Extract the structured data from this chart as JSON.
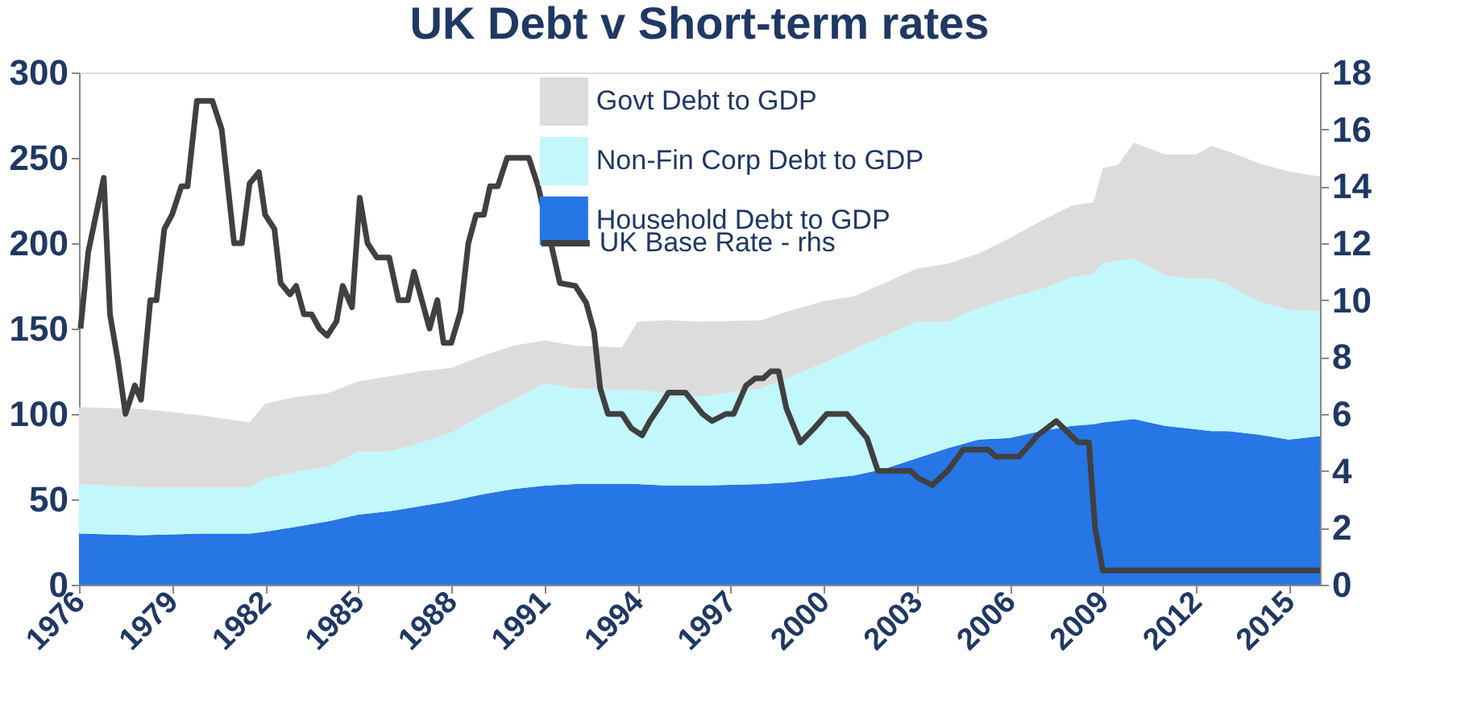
{
  "chart_data": {
    "type": "area",
    "title": "UK Debt v Short-term rates",
    "stacked": true,
    "legend": "top",
    "grid": false,
    "x": [
      1976,
      1978,
      1980,
      1981.5,
      1982,
      1983,
      1984,
      1985,
      1986,
      1987,
      1988,
      1989,
      1990,
      1991,
      1992,
      1993.5,
      1994,
      1995,
      1996,
      1998,
      1999,
      2000,
      2001,
      2002,
      2003,
      2004,
      2005,
      2006,
      2007,
      2008,
      2008.7,
      2009,
      2009.5,
      2010,
      2011,
      2012,
      2012.5,
      2013,
      2014,
      2015,
      2016
    ],
    "series": [
      {
        "name": "Household Debt to GDP",
        "color": "#2776e6",
        "values": [
          30,
          29,
          30,
          30,
          31,
          34,
          37,
          41,
          43,
          46,
          49,
          53,
          56,
          58,
          59,
          59,
          59,
          58,
          58,
          59,
          60,
          62,
          64,
          68,
          74,
          80,
          85,
          86,
          90,
          93,
          94,
          95,
          96,
          97,
          93,
          91,
          90,
          90,
          88,
          85,
          87
        ]
      },
      {
        "name": "Non-Fin Corp Debt to GDP",
        "color": "#c2f8fb",
        "values": [
          29,
          28,
          27,
          27,
          31,
          32,
          32,
          37,
          35,
          37,
          40,
          46,
          52,
          60,
          56,
          55,
          55,
          54,
          52,
          56,
          62,
          68,
          74,
          78,
          80,
          74,
          77,
          82,
          83,
          87,
          88,
          93,
          94,
          94,
          88,
          88,
          89,
          86,
          78,
          76,
          73
        ]
      },
      {
        "name": "Govt Debt to GDP",
        "color": "#dcdcdc",
        "values": [
          45,
          46,
          42,
          38,
          44,
          44,
          43,
          41,
          44,
          42,
          38,
          35,
          32,
          25,
          25,
          25,
          40,
          43,
          44,
          40,
          39,
          36,
          31,
          31,
          31,
          34,
          32,
          35,
          40,
          42,
          42,
          56,
          56,
          68,
          71,
          73,
          78,
          78,
          81,
          81,
          79
        ]
      },
      {
        "name": "UK Base Rate - rhs",
        "type": "line",
        "axis": "y2",
        "color": "#404040",
        "x": [
          1976.05,
          1976.3,
          1976.8,
          1977.0,
          1977.25,
          1977.5,
          1977.8,
          1978.0,
          1978.3,
          1978.5,
          1978.75,
          1979.0,
          1979.3,
          1979.5,
          1979.8,
          1980.3,
          1980.6,
          1981.0,
          1981.25,
          1981.5,
          1981.8,
          1982.0,
          1982.3,
          1982.5,
          1982.8,
          1983.0,
          1983.25,
          1983.5,
          1983.75,
          1984.0,
          1984.3,
          1984.5,
          1984.8,
          1985.05,
          1985.3,
          1985.6,
          1986.0,
          1986.3,
          1986.6,
          1986.8,
          1987.3,
          1987.55,
          1987.75,
          1988.0,
          1988.3,
          1988.55,
          1988.8,
          1989.05,
          1989.25,
          1989.5,
          1989.8,
          1990.5,
          1990.8,
          1991.5,
          1992.0,
          1992.35,
          1992.6,
          1992.8,
          1993.05,
          1993.5,
          1993.8,
          1994.15,
          1994.4,
          1994.8,
          1995.0,
          1995.55,
          1996.1,
          1996.4,
          1996.85,
          1997.1,
          1997.5,
          1997.8,
          1998.05,
          1998.3,
          1998.55,
          1998.8,
          1999.25,
          1999.7,
          2000.1,
          2000.75,
          2001.4,
          2001.75,
          2002.8,
          2003.05,
          2003.5,
          2004.0,
          2004.5,
          2005.3,
          2005.55,
          2006.3,
          2006.9,
          2007.5,
          2008.2,
          2008.55,
          2008.75,
          2009.0,
          2016.0
        ],
        "values": [
          9.0,
          11.7,
          14.3,
          9.5,
          7.9,
          6.0,
          7.0,
          6.5,
          10.0,
          10.0,
          12.5,
          13.0,
          14.0,
          14.0,
          17.0,
          17.0,
          16.0,
          12.0,
          12.0,
          14.1,
          14.5,
          13.0,
          12.5,
          10.6,
          10.2,
          10.5,
          9.5,
          9.5,
          9.0,
          8.75,
          9.25,
          10.5,
          9.75,
          13.6,
          12.0,
          11.5,
          11.5,
          10.0,
          10.0,
          11.0,
          9.0,
          10.0,
          8.5,
          8.5,
          9.6,
          12.0,
          13.0,
          13.0,
          14.0,
          14.0,
          15.0,
          15.0,
          14.0,
          10.6,
          10.5,
          9.9,
          8.9,
          6.9,
          6.0,
          6.0,
          5.5,
          5.25,
          5.75,
          6.4,
          6.75,
          6.75,
          6.0,
          5.75,
          6.0,
          6.0,
          7.0,
          7.25,
          7.25,
          7.5,
          7.5,
          6.2,
          5.0,
          5.5,
          6.0,
          6.0,
          5.15,
          4.0,
          4.0,
          3.75,
          3.5,
          4.0,
          4.75,
          4.75,
          4.5,
          4.5,
          5.25,
          5.75,
          5.0,
          5.0,
          2.0,
          0.5,
          0.5
        ]
      }
    ],
    "xlim": [
      1976,
      2016
    ],
    "xticks": [
      1976,
      1979,
      1982,
      1985,
      1988,
      1991,
      1994,
      1997,
      2000,
      2003,
      2006,
      2009,
      2012,
      2015
    ],
    "ylim": [
      0,
      300
    ],
    "yticks": [
      0,
      50,
      100,
      150,
      200,
      250,
      300
    ],
    "y2lim": [
      0,
      18
    ],
    "y2ticks": [
      0,
      2,
      4,
      6,
      8,
      10,
      12,
      14,
      16,
      18
    ]
  }
}
